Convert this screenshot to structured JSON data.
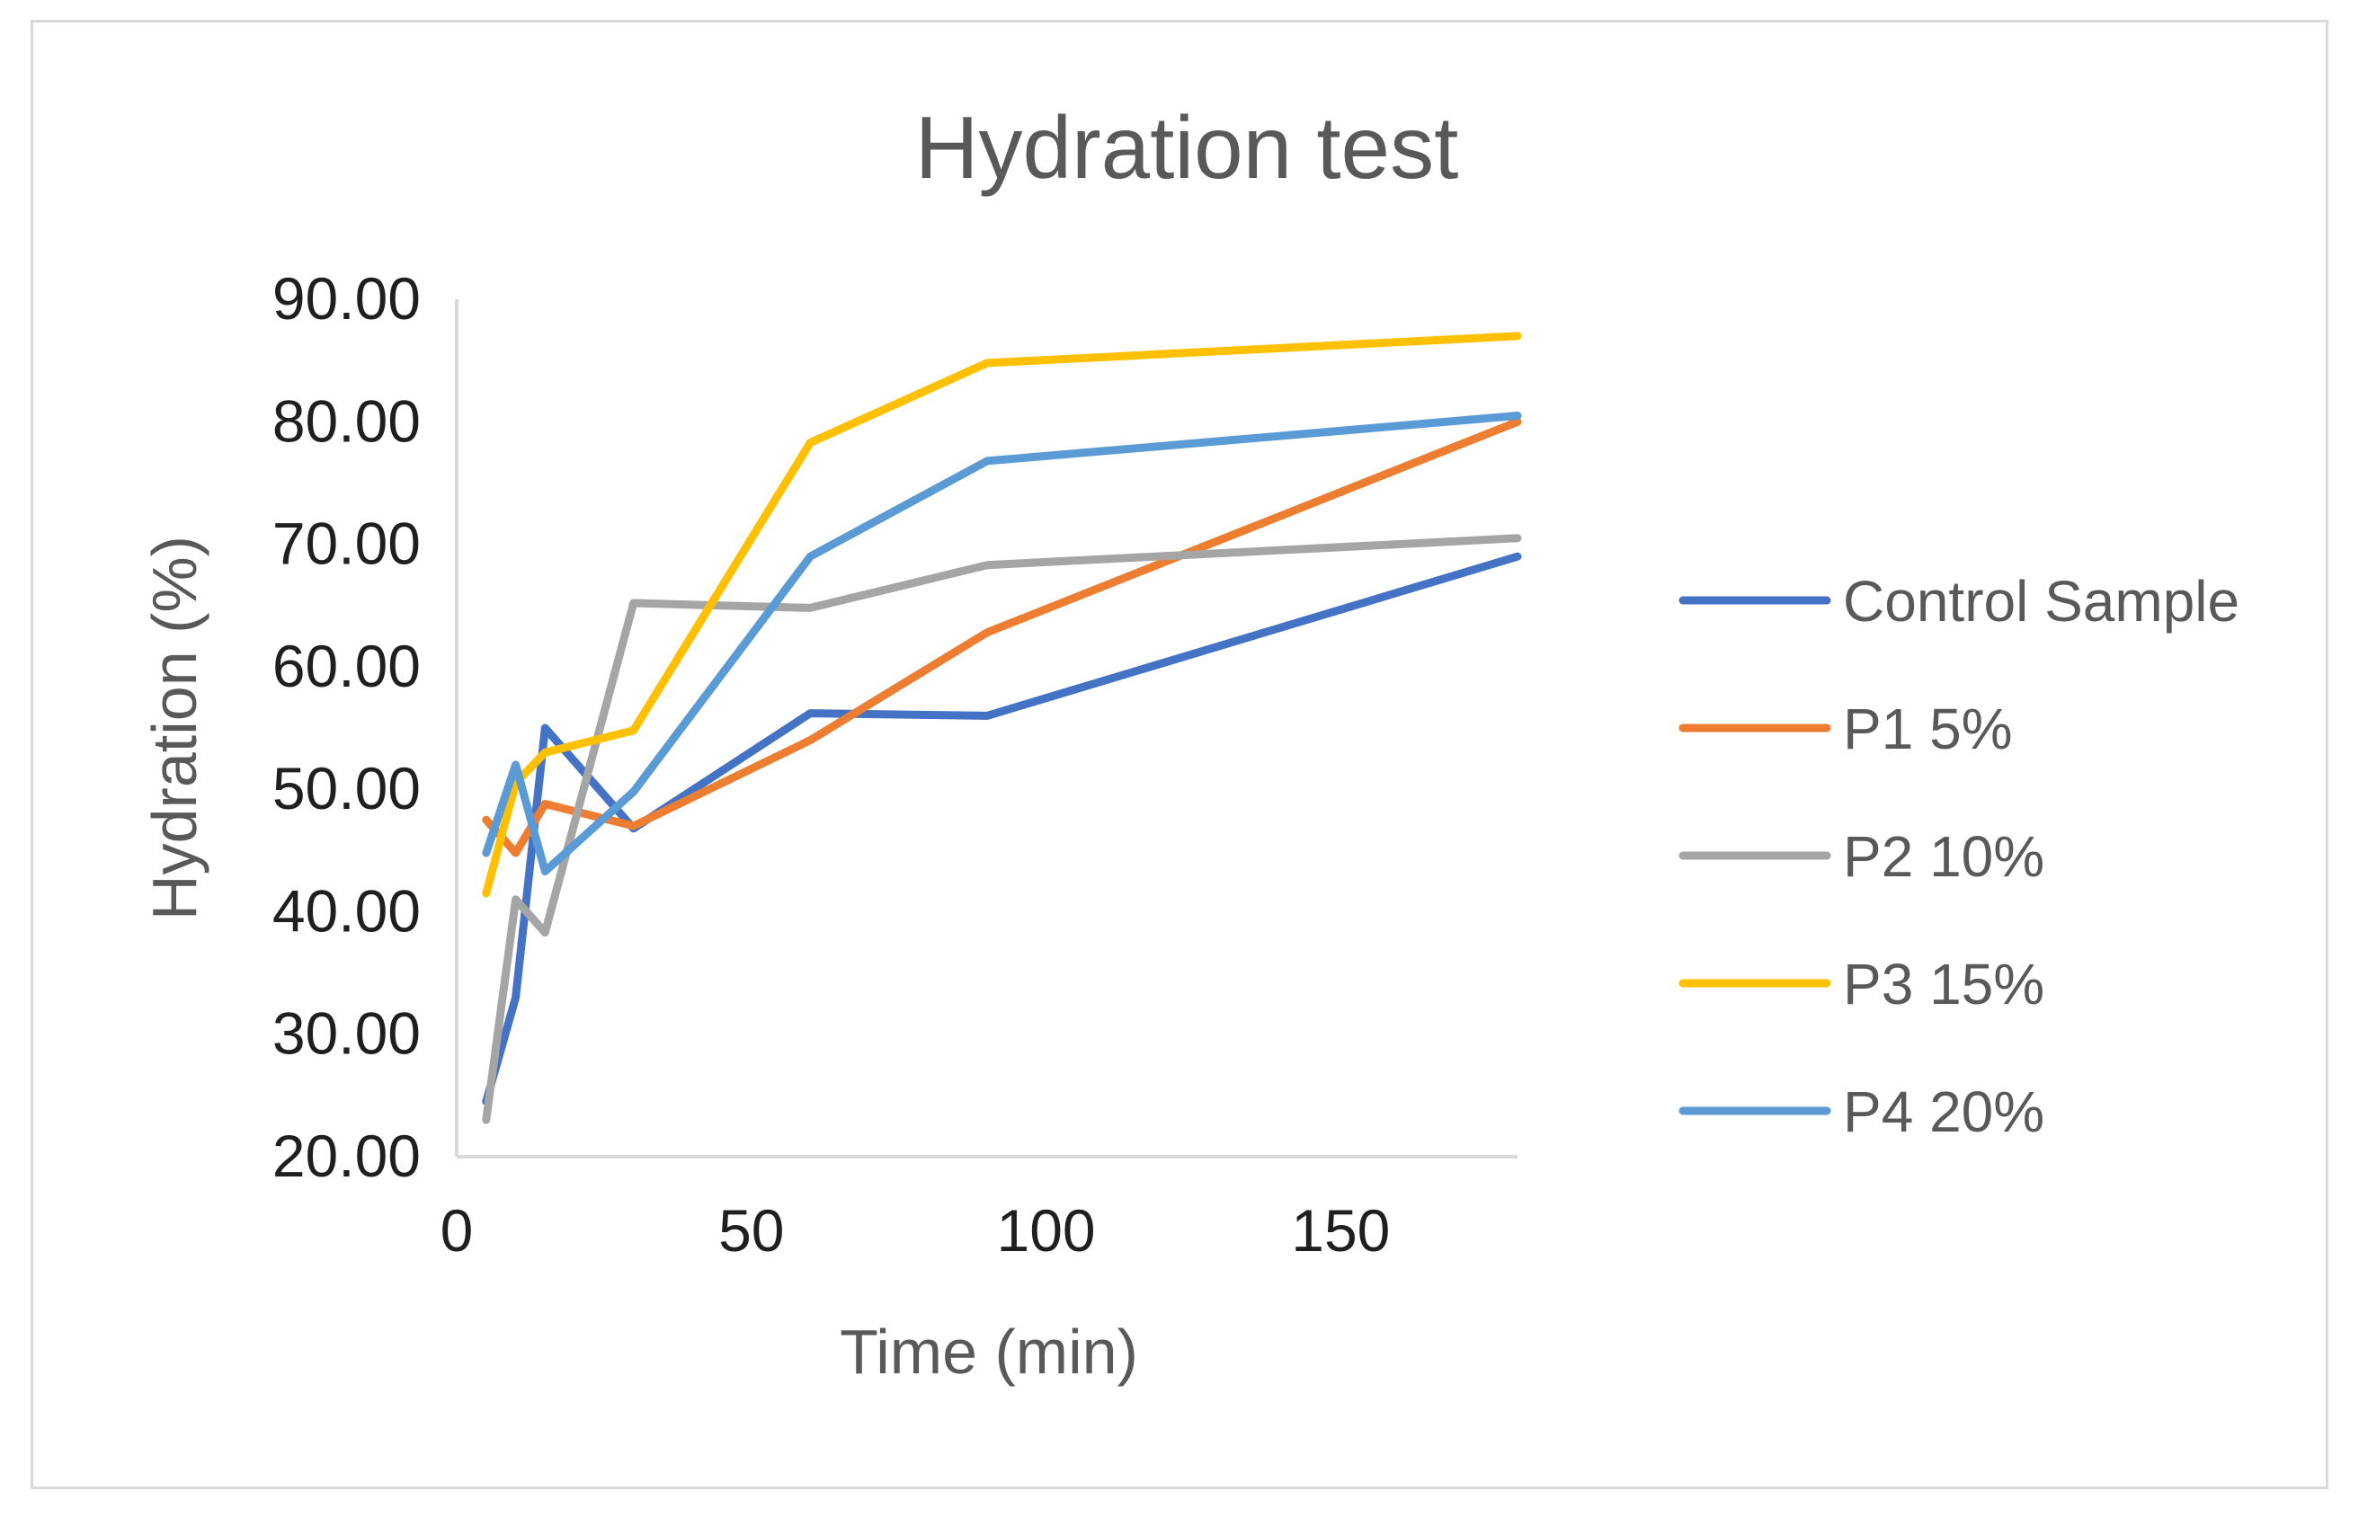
{
  "chart_data": {
    "type": "line",
    "title": "Hydration test",
    "xlabel": "Time (min)",
    "ylabel": "Hydration (%)",
    "xlim": [
      0,
      180
    ],
    "ylim": [
      20,
      90
    ],
    "xticks": [
      0,
      50,
      100,
      150
    ],
    "yticks": [
      20,
      30,
      40,
      50,
      60,
      70,
      80,
      90
    ],
    "xtick_labels": [
      "0",
      "50",
      "100",
      "150"
    ],
    "ytick_labels": [
      "20.00",
      "30.00",
      "40.00",
      "50.00",
      "60.00",
      "70.00",
      "80.00",
      "90.00"
    ],
    "grid": false,
    "legend_position": "right",
    "x": [
      5,
      10,
      15,
      30,
      60,
      90,
      180
    ],
    "series": [
      {
        "name": "Control Sample",
        "color": "#4472c4",
        "values": [
          24.5,
          33.0,
          55.0,
          46.8,
          56.2,
          56.0,
          69.0
        ]
      },
      {
        "name": "P1 5%",
        "color": "#ed7d31",
        "values": [
          47.5,
          44.8,
          48.8,
          47.0,
          54.0,
          62.8,
          80.0
        ]
      },
      {
        "name": "P2 10%",
        "color": "#a5a5a5",
        "values": [
          23.0,
          41.0,
          38.3,
          65.2,
          64.8,
          68.3,
          70.5
        ]
      },
      {
        "name": "P3 15%",
        "color": "#ffc000",
        "values": [
          41.5,
          50.5,
          53.0,
          54.8,
          78.3,
          84.8,
          87.0
        ]
      },
      {
        "name": "P4 20%",
        "color": "#5b9bd5",
        "values": [
          44.8,
          52.0,
          43.3,
          49.8,
          69.0,
          76.8,
          80.5
        ]
      }
    ]
  }
}
